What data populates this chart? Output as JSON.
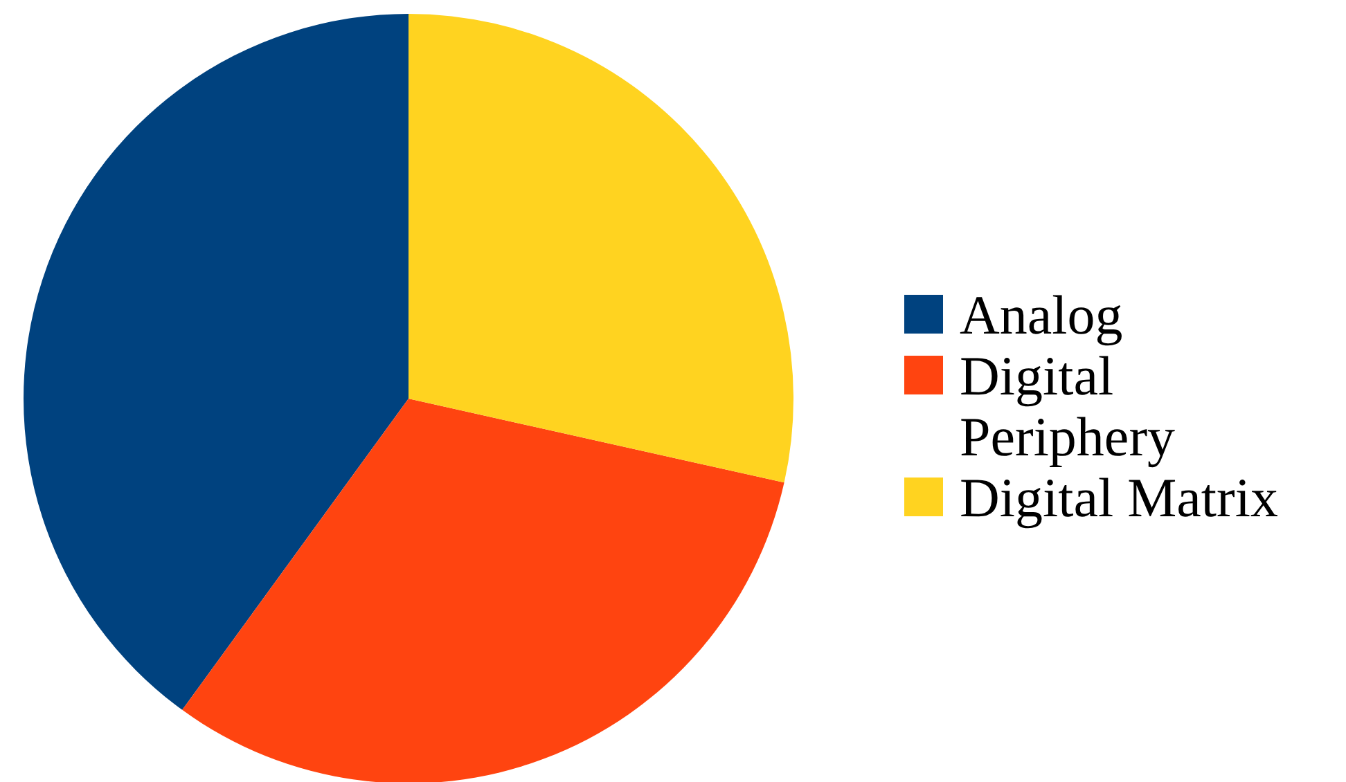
{
  "chart_data": {
    "type": "pie",
    "categories": [
      "Analog",
      "Digital Periphery",
      "Digital Matrix"
    ],
    "values": [
      40,
      31.5,
      28.5
    ],
    "colors": [
      "#00427f",
      "#ff4410",
      "#ffd320"
    ],
    "legend": "right"
  }
}
